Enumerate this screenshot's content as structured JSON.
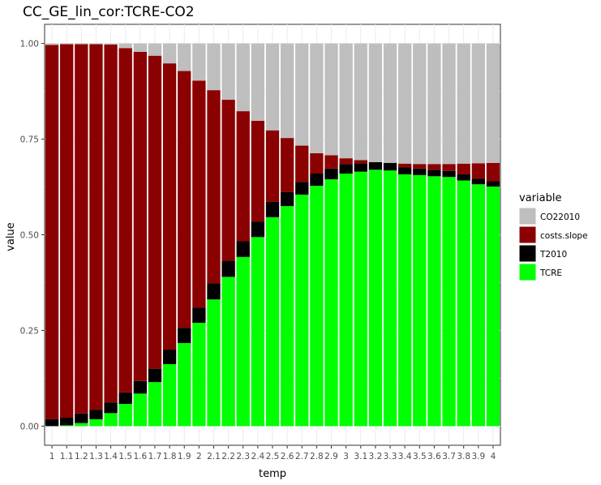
{
  "chart_data": {
    "type": "bar",
    "stacked": true,
    "title": "CC_GE_lin_cor:TCRE-CO2",
    "xlabel": "temp",
    "ylabel": "value",
    "ylim": [
      0,
      1
    ],
    "yticks": [
      "0.00",
      "0.25",
      "0.50",
      "0.75",
      "1.00"
    ],
    "grid": true,
    "legend": {
      "title": "variable",
      "placement": "right"
    },
    "categories": [
      "1",
      "1.1",
      "1.2",
      "1.3",
      "1.4",
      "1.5",
      "1.6",
      "1.7",
      "1.8",
      "1.9",
      "2",
      "2.1",
      "2.2",
      "2.3",
      "2.4",
      "2.5",
      "2.6",
      "2.7",
      "2.8",
      "2.9",
      "3",
      "3.1",
      "3.2",
      "3.3",
      "3.4",
      "3.5",
      "3.6",
      "3.7",
      "3.8",
      "3.9",
      "4"
    ],
    "series": [
      {
        "name": "CO22010",
        "color": "#bebebe",
        "values": [
          0.004,
          0.002,
          0.002,
          0.002,
          0.003,
          0.012,
          0.022,
          0.032,
          0.052,
          0.072,
          0.097,
          0.122,
          0.147,
          0.177,
          0.202,
          0.227,
          0.247,
          0.267,
          0.287,
          0.292,
          0.3,
          0.305,
          0.31,
          0.312,
          0.314,
          0.315,
          0.315,
          0.315,
          0.314,
          0.313,
          0.312
        ]
      },
      {
        "name": "costs.slope",
        "color": "#8b0000",
        "values": [
          0.978,
          0.976,
          0.965,
          0.955,
          0.935,
          0.9,
          0.86,
          0.818,
          0.748,
          0.671,
          0.593,
          0.505,
          0.421,
          0.34,
          0.264,
          0.187,
          0.141,
          0.095,
          0.053,
          0.035,
          0.015,
          0.008,
          0.0,
          0.0,
          0.01,
          0.012,
          0.015,
          0.018,
          0.028,
          0.04,
          0.048
        ]
      },
      {
        "name": "T2010",
        "color": "#000000",
        "values": [
          0.018,
          0.02,
          0.025,
          0.025,
          0.028,
          0.03,
          0.033,
          0.035,
          0.038,
          0.04,
          0.04,
          0.042,
          0.042,
          0.041,
          0.04,
          0.04,
          0.037,
          0.033,
          0.032,
          0.028,
          0.025,
          0.022,
          0.02,
          0.02,
          0.018,
          0.017,
          0.017,
          0.016,
          0.016,
          0.015,
          0.014
        ]
      },
      {
        "name": "TCRE",
        "color": "#00ff00",
        "values": [
          0.0,
          0.002,
          0.008,
          0.018,
          0.034,
          0.058,
          0.085,
          0.115,
          0.162,
          0.217,
          0.27,
          0.331,
          0.39,
          0.442,
          0.494,
          0.546,
          0.575,
          0.605,
          0.628,
          0.645,
          0.66,
          0.665,
          0.67,
          0.668,
          0.658,
          0.656,
          0.653,
          0.651,
          0.642,
          0.632,
          0.626
        ]
      }
    ]
  }
}
